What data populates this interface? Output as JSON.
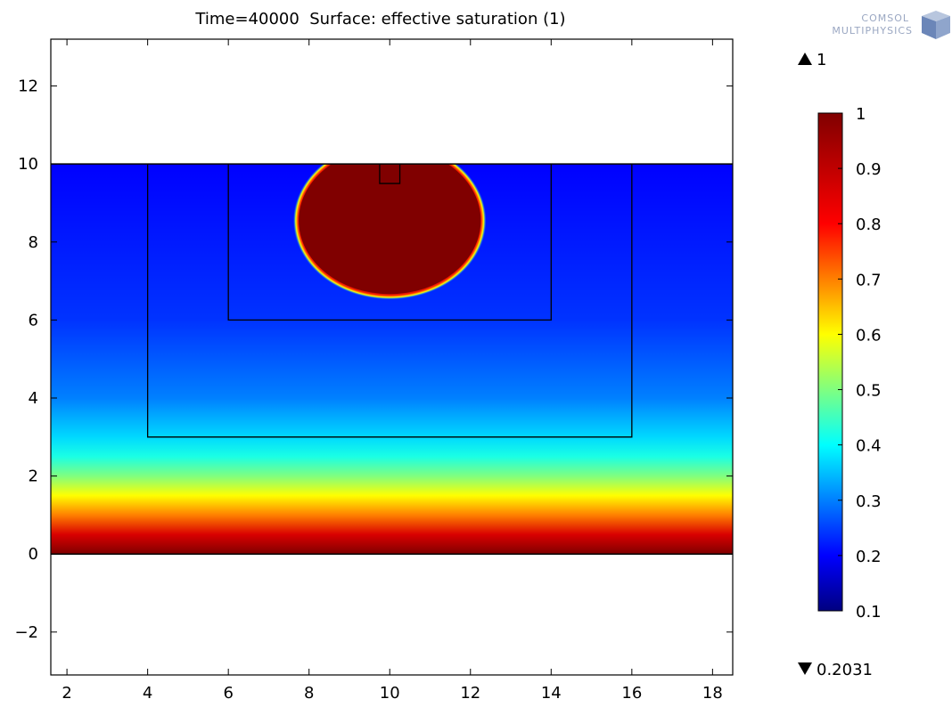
{
  "chart_data": {
    "type": "heatmap",
    "title": "Time=40000  Surface: effective saturation (1)",
    "xlim": [
      1.6,
      18.5
    ],
    "ylim": [
      -3.1,
      13.2
    ],
    "xticks": [
      2,
      4,
      6,
      8,
      10,
      12,
      14,
      16,
      18
    ],
    "yticks": [
      -2,
      0,
      2,
      4,
      6,
      8,
      10,
      12
    ],
    "domain": {
      "x": [
        1.6,
        18.5
      ],
      "y": [
        0,
        10
      ]
    },
    "subdomains": [
      {
        "x": [
          4,
          16
        ],
        "y": [
          3,
          10
        ]
      },
      {
        "x": [
          6,
          14
        ],
        "y": [
          6,
          10
        ]
      },
      {
        "x": [
          9.75,
          10.25
        ],
        "y": [
          9.5,
          10
        ]
      }
    ],
    "saturated_bulb": {
      "center": [
        10.0,
        8.55
      ],
      "radius_x": 2.3,
      "top_y": 10,
      "bottom_y": 6.62,
      "value": 1.0
    },
    "vertical_profile": {
      "y": [
        0,
        0.5,
        1,
        1.5,
        2,
        2.5,
        3,
        4,
        6,
        10
      ],
      "value": [
        1.0,
        0.86,
        0.7,
        0.6,
        0.5,
        0.42,
        0.37,
        0.3,
        0.24,
        0.2
      ]
    },
    "colorbar": {
      "min": 0.1,
      "max": 1,
      "ticks": [
        1,
        0.9,
        0.8,
        0.7,
        0.6,
        0.5,
        0.4,
        0.3,
        0.2,
        0.1
      ]
    },
    "data_max": "1",
    "data_min": "0.2031",
    "colors": {
      "colormap": [
        "#000080",
        "#0000ff",
        "#00ffff",
        "#ffff00",
        "#ff0000",
        "#800000"
      ]
    }
  },
  "logo": {
    "line1": "COMSOL",
    "line2": "MULTIPHYSICS"
  }
}
